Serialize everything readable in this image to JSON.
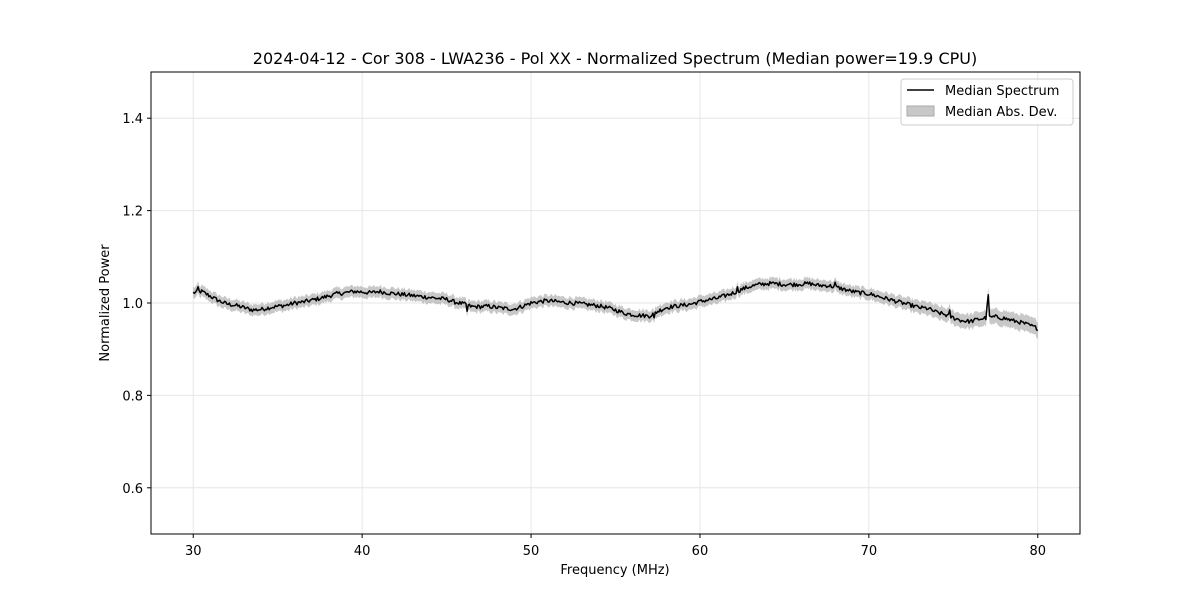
{
  "chart_data": {
    "type": "line",
    "title": "2024-04-12 - Cor 308 - LWA236 - Pol XX - Normalized Spectrum (Median power=19.9 CPU)",
    "xlabel": "Frequency (MHz)",
    "ylabel": "Normalized Power",
    "xlim": [
      27.5,
      82.5
    ],
    "ylim": [
      0.5,
      1.5
    ],
    "xticks": [
      30,
      40,
      50,
      60,
      70,
      80
    ],
    "yticks": [
      0.6,
      0.8,
      1.0,
      1.2,
      1.4
    ],
    "xtick_labels": [
      "30",
      "40",
      "50",
      "60",
      "70",
      "80"
    ],
    "ytick_labels": [
      "0.6",
      "0.8",
      "1.0",
      "1.2",
      "1.4"
    ],
    "grid": true,
    "legend_position": "top-right",
    "legend": [
      {
        "label": "Median Spectrum",
        "kind": "line",
        "color": "#000000"
      },
      {
        "label": "Median Abs. Dev.",
        "kind": "band",
        "color": "#b0b0b0"
      }
    ],
    "series": [
      {
        "name": "Median Spectrum",
        "x": [
          30,
          30.5,
          31,
          31.5,
          32,
          32.5,
          33,
          33.5,
          34,
          34.5,
          35,
          35.5,
          36,
          36.5,
          37,
          37.5,
          38,
          38.5,
          39,
          39.5,
          40,
          40.5,
          41,
          41.5,
          42,
          42.5,
          43,
          43.5,
          44,
          44.5,
          45,
          45.5,
          46,
          46.5,
          47,
          47.5,
          48,
          48.5,
          49,
          49.5,
          50,
          50.5,
          51,
          51.5,
          52,
          52.5,
          53,
          53.5,
          54,
          54.5,
          55,
          55.5,
          56,
          56.5,
          57,
          57.5,
          58,
          58.5,
          59,
          59.5,
          60,
          60.5,
          61,
          61.5,
          62,
          62.5,
          63,
          63.5,
          64,
          64.5,
          65,
          65.5,
          66,
          66.5,
          67,
          67.5,
          68,
          68.5,
          69,
          69.5,
          70,
          70.5,
          71,
          71.5,
          72,
          72.5,
          73,
          73.5,
          74,
          74.5,
          75,
          75.5,
          76,
          76.5,
          77,
          77.5,
          78,
          78.5,
          79,
          79.5,
          80
        ],
        "values": [
          1.022,
          1.025,
          1.015,
          1.005,
          0.998,
          0.995,
          0.99,
          0.985,
          0.986,
          0.99,
          0.993,
          0.995,
          1.0,
          1.002,
          1.006,
          1.01,
          1.015,
          1.02,
          1.022,
          1.025,
          1.024,
          1.022,
          1.025,
          1.022,
          1.02,
          1.018,
          1.016,
          1.014,
          1.012,
          1.01,
          1.008,
          1.002,
          0.998,
          0.992,
          0.992,
          0.993,
          0.99,
          0.988,
          0.987,
          0.993,
          1.0,
          1.003,
          1.005,
          1.003,
          1.001,
          1.0,
          0.998,
          0.996,
          0.994,
          0.99,
          0.985,
          0.978,
          0.975,
          0.973,
          0.972,
          0.982,
          0.99,
          0.993,
          0.995,
          0.998,
          1.003,
          1.007,
          1.01,
          1.016,
          1.022,
          1.03,
          1.036,
          1.04,
          1.042,
          1.042,
          1.04,
          1.04,
          1.041,
          1.042,
          1.038,
          1.038,
          1.035,
          1.03,
          1.025,
          1.022,
          1.02,
          1.015,
          1.01,
          1.005,
          1.0,
          0.995,
          0.99,
          0.988,
          0.98,
          0.975,
          0.968,
          0.962,
          0.96,
          0.965,
          0.968,
          0.97,
          0.967,
          0.962,
          0.958,
          0.952,
          0.945
        ]
      }
    ],
    "band": {
      "name": "Median Abs. Dev.",
      "halfwidth": 0.012
    },
    "spikes": [
      {
        "x": 30.3,
        "value": 1.035
      },
      {
        "x": 46.2,
        "value": 0.982
      },
      {
        "x": 57.3,
        "value": 0.968
      },
      {
        "x": 62.2,
        "value": 1.035
      },
      {
        "x": 68.0,
        "value": 1.045
      },
      {
        "x": 74.8,
        "value": 0.985
      },
      {
        "x": 77.0,
        "value": 0.995
      },
      {
        "x": 77.1,
        "value": 1.018
      }
    ]
  }
}
